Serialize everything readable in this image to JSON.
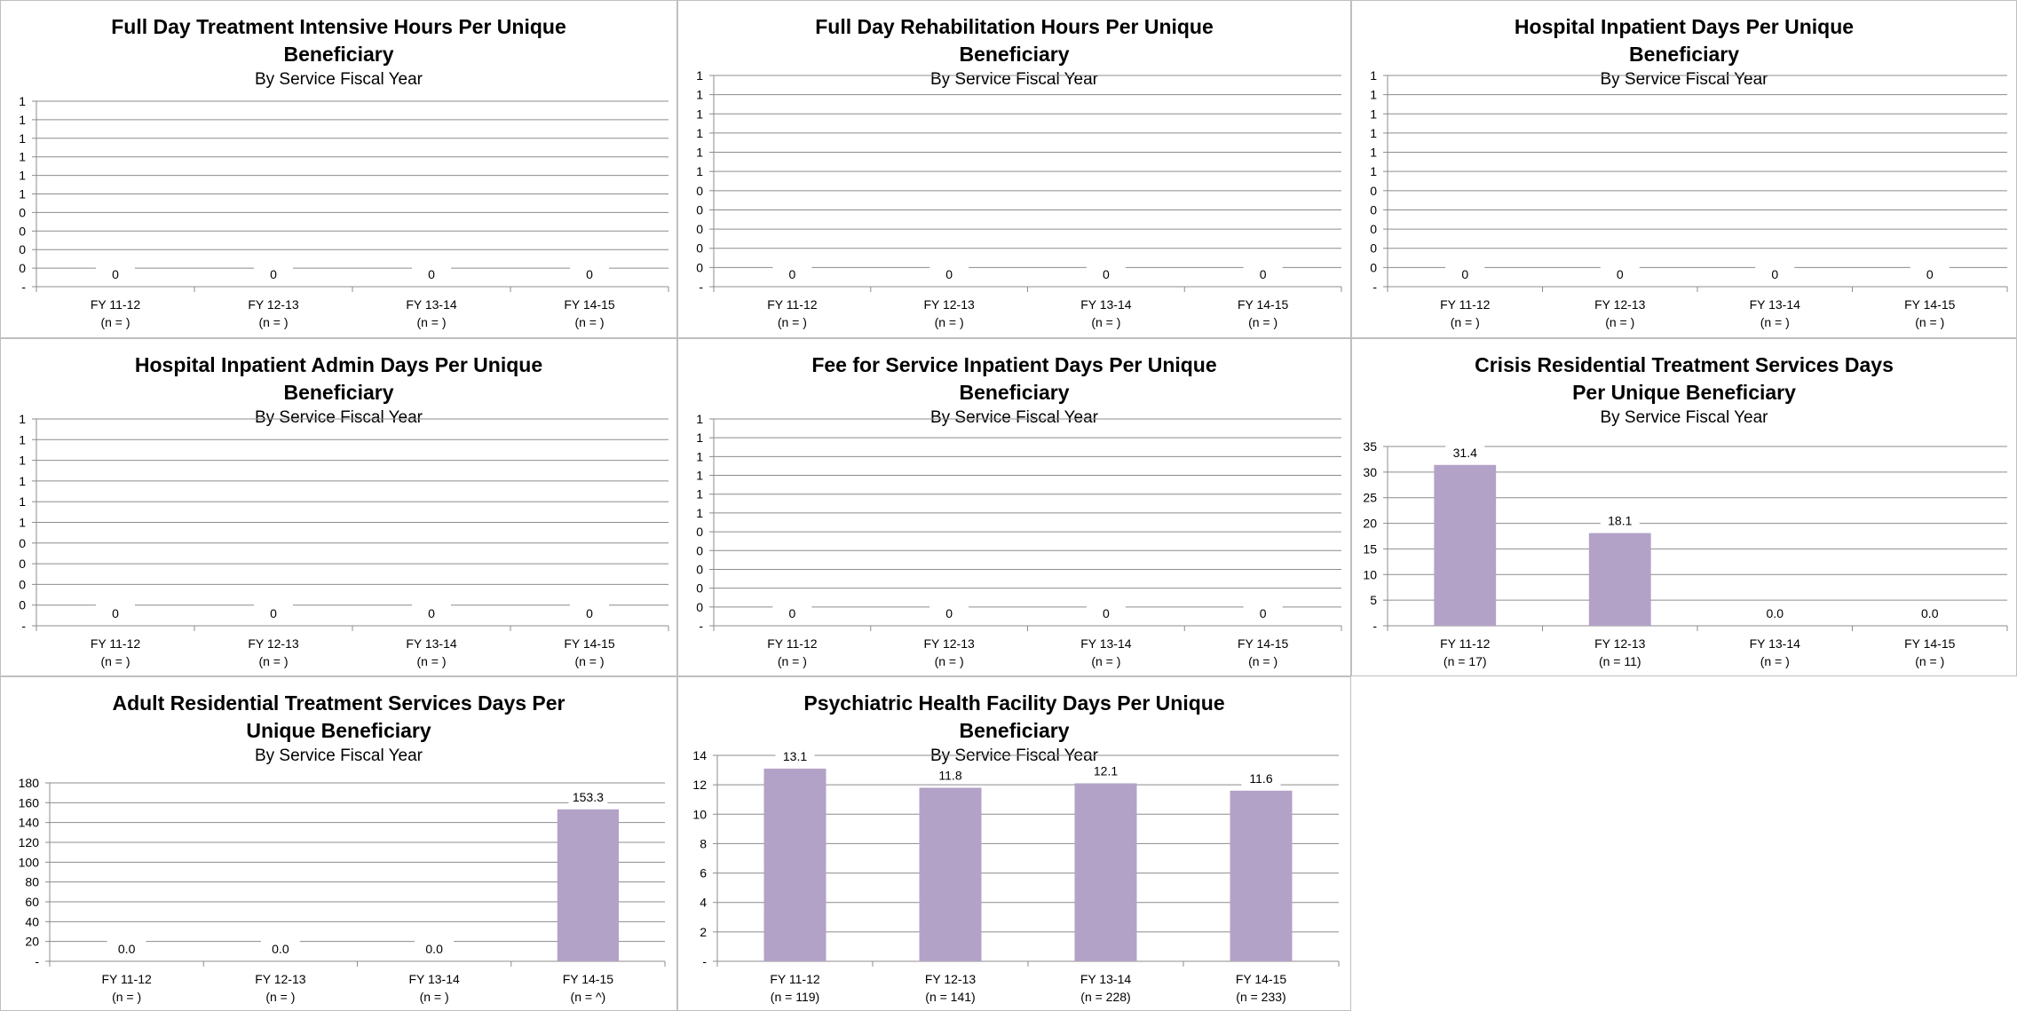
{
  "chart_data": [
    {
      "type": "bar",
      "title": "Full Day Treatment Intensive Hours Per Unique Beneficiary",
      "subtitle": "By Service Fiscal Year",
      "categories": [
        "FY 11-12",
        "FY 12-13",
        "FY 13-14",
        "FY 14-15"
      ],
      "category_n": [
        "(n = )",
        "(n = )",
        "(n = )",
        "(n = )"
      ],
      "values": [
        0,
        0,
        0,
        0
      ],
      "value_labels": [
        "0",
        "0",
        "0",
        "0"
      ],
      "y_tick_labels": [
        "-",
        "0",
        "0",
        "0",
        "0",
        "1",
        "1",
        "1",
        "1",
        "1",
        "1"
      ],
      "ylim": [
        0,
        1
      ],
      "grid": true,
      "bar_color": "#b3a2c7"
    },
    {
      "type": "bar",
      "title": "Full Day Rehabilitation Hours Per Unique Beneficiary",
      "subtitle": "By Service Fiscal Year",
      "categories": [
        "FY 11-12",
        "FY 12-13",
        "FY 13-14",
        "FY 14-15"
      ],
      "category_n": [
        "(n = )",
        "(n = )",
        "(n = )",
        "(n = )"
      ],
      "values": [
        0,
        0,
        0,
        0
      ],
      "value_labels": [
        "0",
        "0",
        "0",
        "0"
      ],
      "y_tick_labels": [
        "-",
        "0",
        "0",
        "0",
        "0",
        "0",
        "1",
        "1",
        "1",
        "1",
        "1",
        "1"
      ],
      "ylim": [
        0,
        1
      ],
      "grid": true,
      "bar_color": "#b3a2c7"
    },
    {
      "type": "bar",
      "title": "Hospital Inpatient Days Per Unique Beneficiary",
      "subtitle": "By Service Fiscal Year",
      "categories": [
        "FY 11-12",
        "FY 12-13",
        "FY 13-14",
        "FY 14-15"
      ],
      "category_n": [
        "(n = )",
        "(n = )",
        "(n = )",
        "(n = )"
      ],
      "values": [
        0,
        0,
        0,
        0
      ],
      "value_labels": [
        "0",
        "0",
        "0",
        "0"
      ],
      "y_tick_labels": [
        "-",
        "0",
        "0",
        "0",
        "0",
        "0",
        "1",
        "1",
        "1",
        "1",
        "1",
        "1"
      ],
      "ylim": [
        0,
        1
      ],
      "grid": true,
      "bar_color": "#b3a2c7"
    },
    {
      "type": "bar",
      "title": "Hospital Inpatient Admin Days Per Unique Beneficiary",
      "subtitle": "By Service Fiscal Year",
      "categories": [
        "FY 11-12",
        "FY 12-13",
        "FY 13-14",
        "FY 14-15"
      ],
      "category_n": [
        "(n = )",
        "(n = )",
        "(n = )",
        "(n = )"
      ],
      "values": [
        0,
        0,
        0,
        0
      ],
      "value_labels": [
        "0",
        "0",
        "0",
        "0"
      ],
      "y_tick_labels": [
        "-",
        "0",
        "0",
        "0",
        "0",
        "1",
        "1",
        "1",
        "1",
        "1",
        "1"
      ],
      "ylim": [
        0,
        1
      ],
      "grid": true,
      "bar_color": "#b3a2c7"
    },
    {
      "type": "bar",
      "title": "Fee for Service Inpatient Days Per Unique Beneficiary",
      "subtitle": "By Service Fiscal Year",
      "categories": [
        "FY 11-12",
        "FY 12-13",
        "FY 13-14",
        "FY 14-15"
      ],
      "category_n": [
        "(n = )",
        "(n = )",
        "(n = )",
        "(n = )"
      ],
      "values": [
        0,
        0,
        0,
        0
      ],
      "value_labels": [
        "0",
        "0",
        "0",
        "0"
      ],
      "y_tick_labels": [
        "-",
        "0",
        "0",
        "0",
        "0",
        "0",
        "1",
        "1",
        "1",
        "1",
        "1",
        "1"
      ],
      "ylim": [
        0,
        1
      ],
      "grid": true,
      "bar_color": "#b3a2c7"
    },
    {
      "type": "bar",
      "title": "Crisis Residential Treatment Services Days Per Unique Beneficiary",
      "subtitle": "By Service Fiscal Year",
      "categories": [
        "FY 11-12",
        "FY 12-13",
        "FY 13-14",
        "FY 14-15"
      ],
      "category_n": [
        "(n = 17)",
        "(n = 11)",
        "(n = )",
        "(n = )"
      ],
      "values": [
        31.4,
        18.1,
        0,
        0
      ],
      "value_labels": [
        "31.4",
        "18.1",
        "0.0",
        "0.0"
      ],
      "y_tick_labels": [
        "-",
        "5",
        "10",
        "15",
        "20",
        "25",
        "30",
        "35"
      ],
      "ylim": [
        0,
        35
      ],
      "grid": true,
      "bar_color": "#b3a2c7"
    },
    {
      "type": "bar",
      "title": "Adult Residential Treatment Services Days Per Unique Beneficiary",
      "subtitle": "By Service Fiscal Year",
      "categories": [
        "FY 11-12",
        "FY 12-13",
        "FY 13-14",
        "FY 14-15"
      ],
      "category_n": [
        "(n = )",
        "(n = )",
        "(n = )",
        "(n = ^)"
      ],
      "values": [
        0,
        0,
        0,
        153.3
      ],
      "value_labels": [
        "0.0",
        "0.0",
        "0.0",
        "153.3"
      ],
      "y_tick_labels": [
        "-",
        "20",
        "40",
        "60",
        "80",
        "100",
        "120",
        "140",
        "160",
        "180"
      ],
      "ylim": [
        0,
        180
      ],
      "grid": true,
      "bar_color": "#b3a2c7"
    },
    {
      "type": "bar",
      "title": "Psychiatric Health Facility Days Per Unique Beneficiary",
      "subtitle": "By Service Fiscal Year",
      "categories": [
        "FY 11-12",
        "FY 12-13",
        "FY 13-14",
        "FY 14-15"
      ],
      "category_n": [
        "(n = 119)",
        "(n = 141)",
        "(n = 228)",
        "(n = 233)"
      ],
      "values": [
        13.1,
        11.8,
        12.1,
        11.6
      ],
      "value_labels": [
        "13.1",
        "11.8",
        "12.1",
        "11.6"
      ],
      "y_tick_labels": [
        "-",
        "2",
        "4",
        "6",
        "8",
        "10",
        "12",
        "14"
      ],
      "ylim": [
        0,
        14
      ],
      "grid": true,
      "bar_color": "#b3a2c7"
    }
  ]
}
